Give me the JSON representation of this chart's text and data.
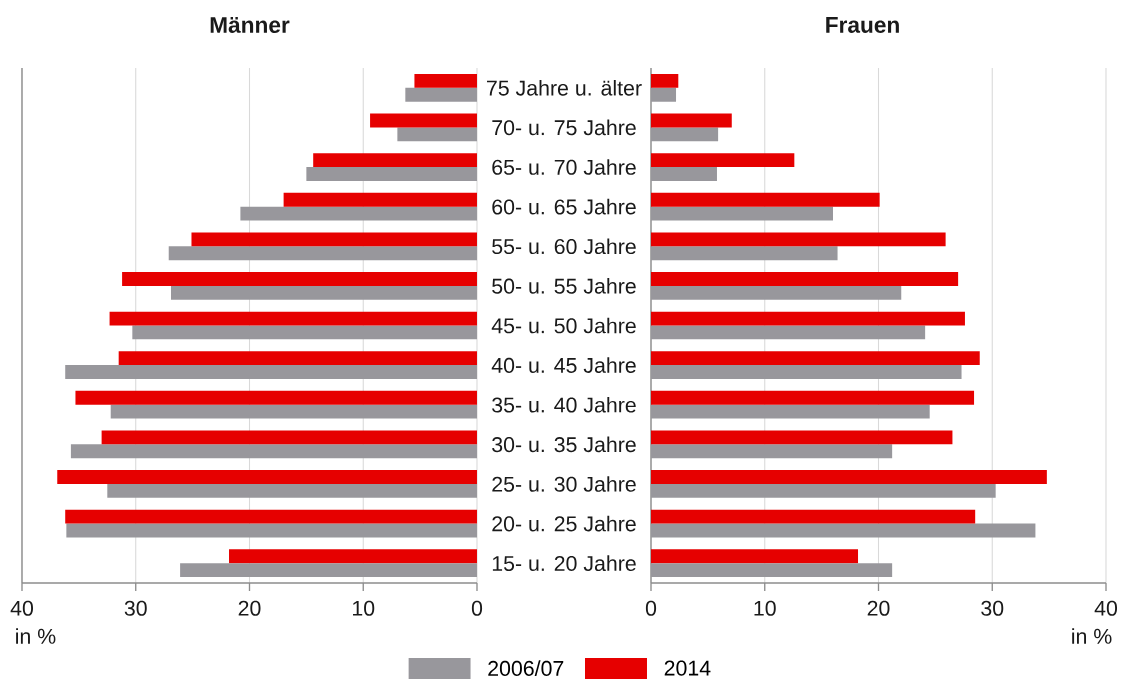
{
  "chart_data": [
    {
      "type": "bar",
      "orientation": "horizontal",
      "title": "Männer",
      "xlabel": "in %",
      "categories": [
        null,
        null,
        null,
        null,
        null,
        null,
        null,
        null,
        null,
        null,
        null,
        null,
        null
      ],
      "series": [
        {
          "name": "2006/07",
          "color": "#98979c",
          "values": [
            6.3,
            7.0,
            15.0,
            20.8,
            27.1,
            26.9,
            30.3,
            36.2,
            32.2,
            35.7,
            32.5,
            36.1,
            26.1
          ]
        },
        {
          "name": "2014",
          "color": "#e60000",
          "values": [
            5.5,
            9.4,
            14.4,
            17.0,
            25.1,
            31.2,
            32.3,
            31.5,
            35.3,
            33.0,
            36.9,
            36.2,
            21.8
          ]
        }
      ],
      "xlim": [
        40,
        0
      ],
      "xticks": [
        40,
        30,
        20,
        10,
        0
      ],
      "grid": "x",
      "legend": "bottom"
    },
    {
      "type": "bar",
      "orientation": "horizontal",
      "title": "Frauen",
      "xlabel": "in %",
      "categories": [
        "75 Jahre u. älter",
        "70- u. 75 Jahre",
        "65- u. 70 Jahre",
        "60- u. 65 Jahre",
        "55- u. 60 Jahre",
        "50- u. 55 Jahre",
        "45- u. 50 Jahre",
        "40- u. 45 Jahre",
        "35- u. 40 Jahre",
        "30- u. 35 Jahre",
        "25- u. 30 Jahre",
        "20- u. 25 Jahre",
        "15- u. 20 Jahre"
      ],
      "series": [
        {
          "color": "#98979c",
          "values": [
            2.2,
            5.9,
            5.8,
            16.0,
            16.4,
            22.0,
            24.1,
            27.3,
            24.5,
            21.2,
            30.3,
            33.8,
            21.2
          ]
        },
        {
          "color": "#e60000",
          "values": [
            2.4,
            7.1,
            12.6,
            20.1,
            25.9,
            27.0,
            27.6,
            28.9,
            28.4,
            26.5,
            34.8,
            28.5,
            18.2
          ]
        }
      ],
      "xlim": [
        0,
        40
      ],
      "xticks": [
        0,
        10,
        20,
        30,
        40
      ],
      "grid": "x"
    }
  ]
}
